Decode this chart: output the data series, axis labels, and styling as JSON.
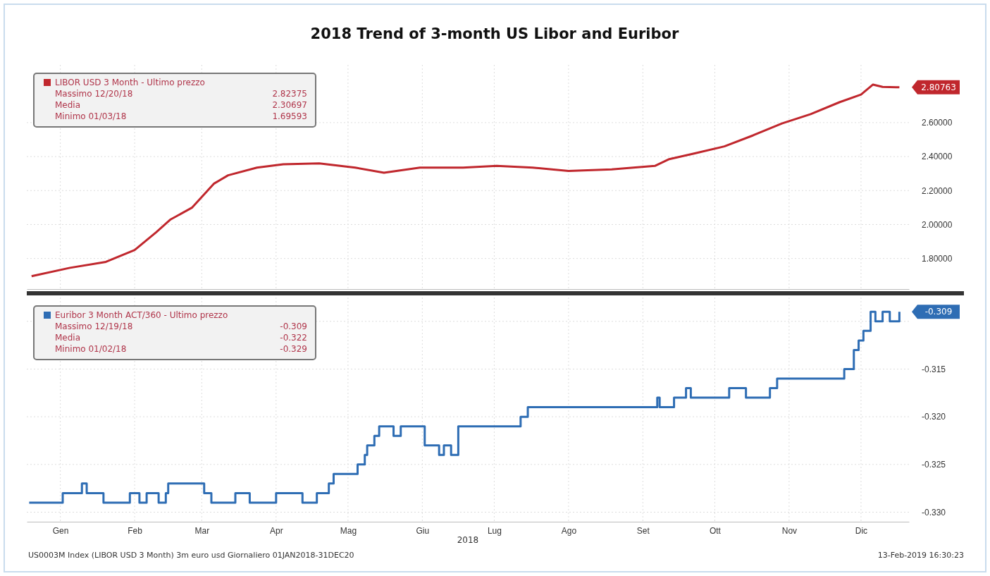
{
  "chart_data": [
    {
      "type": "line",
      "title": "2018 Trend of 3-month US Libor and Euribor",
      "tick_labels": "y",
      "grid": true,
      "legend": "top left",
      "line_style": "solid",
      "marker": "none",
      "xlim": [
        "2018-01-01",
        "2019-01-04"
      ],
      "xticks": [
        {
          "value": "2018-01-15",
          "label": null
        },
        {
          "value": "2018-02-15",
          "label": null
        },
        {
          "value": "2018-03-15",
          "label": null
        },
        {
          "value": "2018-04-15",
          "label": null
        },
        {
          "value": "2018-05-15",
          "label": null
        },
        {
          "value": "2018-06-15",
          "label": null
        },
        {
          "value": "2018-07-15",
          "label": null
        },
        {
          "value": "2018-08-15",
          "label": null
        },
        {
          "value": "2018-09-15",
          "label": null
        },
        {
          "value": "2018-10-15",
          "label": null
        },
        {
          "value": "2018-11-15",
          "label": null
        },
        {
          "value": "2018-12-15",
          "label": null
        }
      ],
      "ylim": [
        1.62,
        2.94
      ],
      "yticks": [
        {
          "value": 1.8,
          "label": "1.80000"
        },
        {
          "value": 2.0,
          "label": "2.00000"
        },
        {
          "value": 2.2,
          "label": "2.20000"
        },
        {
          "value": 2.4,
          "label": "2.40000"
        },
        {
          "value": 2.6,
          "label": "2.60000"
        }
      ],
      "series": [
        {
          "name": "LIBOR USD 3 Month - Ultimo prezzo",
          "color": "#c0272d",
          "x": [
            "2018-01-03",
            "2018-01-19",
            "2018-02-03",
            "2018-02-15",
            "2018-02-24",
            "2018-03-02",
            "2018-03-11",
            "2018-03-20",
            "2018-03-26",
            "2018-04-07",
            "2018-04-18",
            "2018-05-03",
            "2018-05-18",
            "2018-05-30",
            "2018-06-14",
            "2018-07-02",
            "2018-07-16",
            "2018-07-31",
            "2018-08-15",
            "2018-09-02",
            "2018-09-20",
            "2018-09-26",
            "2018-10-07",
            "2018-10-19",
            "2018-10-31",
            "2018-11-12",
            "2018-11-24",
            "2018-12-06",
            "2018-12-15",
            "2018-12-20",
            "2018-12-24",
            "2018-12-31"
          ],
          "values": [
            1.696,
            1.745,
            1.78,
            1.85,
            1.955,
            2.03,
            2.1,
            2.24,
            2.29,
            2.335,
            2.355,
            2.36,
            2.335,
            2.305,
            2.335,
            2.335,
            2.345,
            2.335,
            2.315,
            2.325,
            2.345,
            2.385,
            2.42,
            2.46,
            2.525,
            2.595,
            2.65,
            2.72,
            2.765,
            2.824,
            2.81,
            2.808
          ]
        }
      ],
      "annotations": [
        "Massimo 12/20/18",
        "2.82375",
        "Media",
        "2.30697",
        "Minimo 01/03/18",
        "1.69593",
        "2.80763"
      ]
    },
    {
      "type": "step",
      "xlabel": "2018",
      "grid": true,
      "legend": "top left",
      "line_style": "solid",
      "marker": "none",
      "xlim": [
        "2018-01-01",
        "2019-01-04"
      ],
      "xticks": [
        {
          "value": "2018-01-15",
          "label": "Gen"
        },
        {
          "value": "2018-02-15",
          "label": "Feb"
        },
        {
          "value": "2018-03-15",
          "label": "Mar"
        },
        {
          "value": "2018-04-15",
          "label": "Apr"
        },
        {
          "value": "2018-05-15",
          "label": "Mag"
        },
        {
          "value": "2018-06-15",
          "label": "Giu"
        },
        {
          "value": "2018-07-15",
          "label": "Lug"
        },
        {
          "value": "2018-08-15",
          "label": "Ago"
        },
        {
          "value": "2018-09-15",
          "label": "Set"
        },
        {
          "value": "2018-10-15",
          "label": "Ott"
        },
        {
          "value": "2018-11-15",
          "label": "Nov"
        },
        {
          "value": "2018-12-15",
          "label": "Dic"
        }
      ],
      "ylim": [
        -0.331,
        -0.3075
      ],
      "yticks": [
        {
          "value": -0.33,
          "label": "-0.330"
        },
        {
          "value": -0.325,
          "label": "-0.325"
        },
        {
          "value": -0.32,
          "label": "-0.320"
        },
        {
          "value": -0.315,
          "label": "-0.315"
        },
        {
          "value": -0.31,
          "label": null
        }
      ],
      "series": [
        {
          "name": "Euribor 3 Month ACT/360 - Ultimo prezzo",
          "color": "#2e6db4",
          "x": [
            "2018-01-02",
            "2018-01-16",
            "2018-01-24",
            "2018-01-26",
            "2018-02-02",
            "2018-02-13",
            "2018-02-17",
            "2018-02-20",
            "2018-02-25",
            "2018-02-28",
            "2018-03-01",
            "2018-03-16",
            "2018-03-19",
            "2018-03-29",
            "2018-04-04",
            "2018-04-15",
            "2018-04-26",
            "2018-05-02",
            "2018-05-07",
            "2018-05-09",
            "2018-05-19",
            "2018-05-22",
            "2018-05-23",
            "2018-05-26",
            "2018-05-28",
            "2018-06-03",
            "2018-06-06",
            "2018-06-16",
            "2018-06-22",
            "2018-06-24",
            "2018-06-27",
            "2018-06-30",
            "2018-07-26",
            "2018-07-29",
            "2018-09-21",
            "2018-09-22",
            "2018-09-28",
            "2018-10-03",
            "2018-10-05",
            "2018-10-21",
            "2018-10-28",
            "2018-11-07",
            "2018-11-10",
            "2018-12-08",
            "2018-12-12",
            "2018-12-14",
            "2018-12-16",
            "2018-12-19",
            "2018-12-21",
            "2018-12-24",
            "2018-12-27",
            "2018-12-31"
          ],
          "values": [
            -0.329,
            -0.328,
            -0.327,
            -0.328,
            -0.329,
            -0.328,
            -0.329,
            -0.328,
            -0.329,
            -0.328,
            -0.327,
            -0.328,
            -0.329,
            -0.328,
            -0.329,
            -0.328,
            -0.329,
            -0.328,
            -0.327,
            -0.326,
            -0.325,
            -0.324,
            -0.323,
            -0.322,
            -0.321,
            -0.322,
            -0.321,
            -0.323,
            -0.324,
            -0.323,
            -0.324,
            -0.321,
            -0.32,
            -0.319,
            -0.318,
            -0.319,
            -0.318,
            -0.317,
            -0.318,
            -0.317,
            -0.318,
            -0.317,
            -0.316,
            -0.315,
            -0.313,
            -0.312,
            -0.311,
            -0.309,
            -0.31,
            -0.309,
            -0.31,
            -0.309
          ]
        }
      ],
      "annotations": [
        "Massimo 12/19/18",
        "-0.309",
        "Media",
        "-0.322",
        "Minimo 01/02/18",
        "-0.329",
        "-0.309",
        "US0003M Index (LIBOR USD 3 Month) 3m euro usd  Giornaliero 01JAN2018-31DEC20",
        "13-Feb-2019 16:30:23"
      ]
    }
  ]
}
